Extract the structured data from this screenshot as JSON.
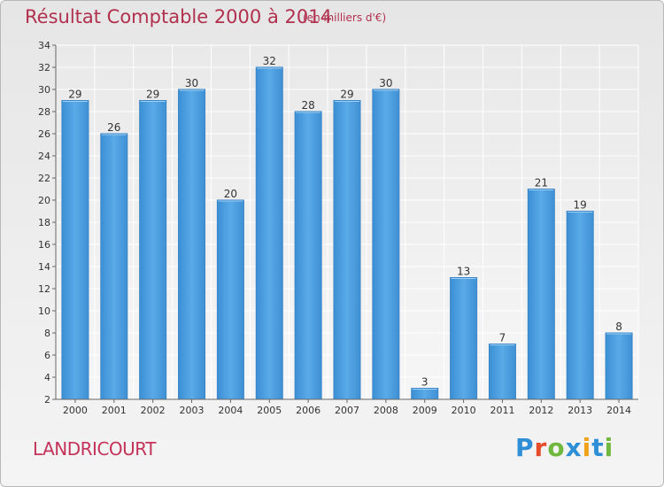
{
  "title": "Résultat Comptable 2000 à 2014",
  "subtitle": "(en milliers d'€)",
  "town": "LANDRICOURT",
  "brand": {
    "text": "Proxiti",
    "letters": [
      "P",
      "r",
      "o",
      "x",
      "i",
      "t",
      "i"
    ],
    "colors": [
      "#2f8fd6",
      "#e64b2a",
      "#6fb83d",
      "#2f8fd6",
      "#f0a21b",
      "#2f8fd6",
      "#6fb83d"
    ]
  },
  "colors": {
    "bar": "#4f9fdf",
    "bar_light": "#6ab5ee",
    "bar_dark": "#2f7fc0",
    "label": "#333333",
    "title": "#b0304e"
  },
  "chart_data": {
    "type": "bar",
    "title": "Résultat Comptable 2000 à 2014",
    "subtitle": "(en milliers d'€)",
    "categories": [
      "2000",
      "2001",
      "2002",
      "2003",
      "2004",
      "2005",
      "2006",
      "2007",
      "2008",
      "2009",
      "2010",
      "2011",
      "2012",
      "2013",
      "2014"
    ],
    "values": [
      29,
      26,
      29,
      30,
      20,
      32,
      28,
      29,
      30,
      3,
      13,
      7,
      21,
      19,
      8
    ],
    "ylim": [
      2,
      34
    ],
    "yticks": [
      2,
      4,
      6,
      8,
      10,
      12,
      14,
      16,
      18,
      20,
      22,
      24,
      26,
      28,
      30,
      32,
      34
    ],
    "xlabel": "",
    "ylabel": "",
    "grid": true
  }
}
